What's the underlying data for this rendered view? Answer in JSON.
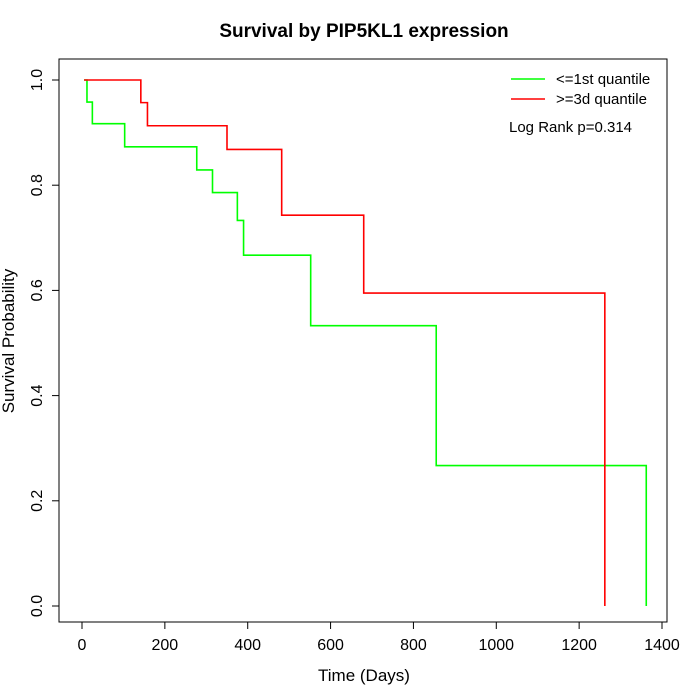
{
  "chart_data": {
    "type": "line",
    "title": "Survival by PIP5KL1 expression",
    "xlabel": "Time (Days)",
    "ylabel": "Survival Probability",
    "xlim": [
      0,
      1400
    ],
    "ylim": [
      0,
      1.0
    ],
    "x_ticks": [
      "0",
      "200",
      "400",
      "600",
      "800",
      "1000",
      "1200",
      "1400"
    ],
    "y_ticks": [
      "0.0",
      "0.2",
      "0.4",
      "0.6",
      "0.8",
      "1.0"
    ],
    "legend_position": "top-right",
    "annotation": "Log Rank p=0.314",
    "series": [
      {
        "name": "<=1st quantile",
        "color": "#00ff00",
        "x": [
          5,
          12,
          25,
          103,
          277,
          315,
          375,
          390,
          552,
          855,
          1362
        ],
        "y": [
          1.0,
          0.958,
          0.917,
          0.873,
          0.829,
          0.786,
          0.733,
          0.667,
          0.533,
          0.267,
          0.0
        ]
      },
      {
        "name": ">=3d quantile",
        "color": "#ff0000",
        "x": [
          5,
          142,
          158,
          350,
          482,
          680,
          1262
        ],
        "y": [
          1.0,
          0.957,
          0.913,
          0.868,
          0.743,
          0.595,
          0.0
        ]
      }
    ]
  }
}
